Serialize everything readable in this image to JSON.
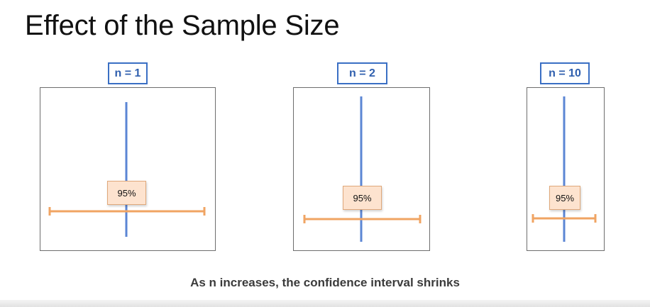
{
  "title": "Effect of the Sample Size",
  "panels": [
    {
      "label": "n = 1",
      "confidence": "95%"
    },
    {
      "label": "n = 2",
      "confidence": "95%"
    },
    {
      "label": "n = 10",
      "confidence": "95%"
    }
  ],
  "caption": "As n increases, the confidence interval shrinks",
  "colors": {
    "label_border": "#3a6fc4",
    "mean_line": "#5b86d4",
    "interval": "#f0a463",
    "badge_fill": "#fde3cf"
  }
}
